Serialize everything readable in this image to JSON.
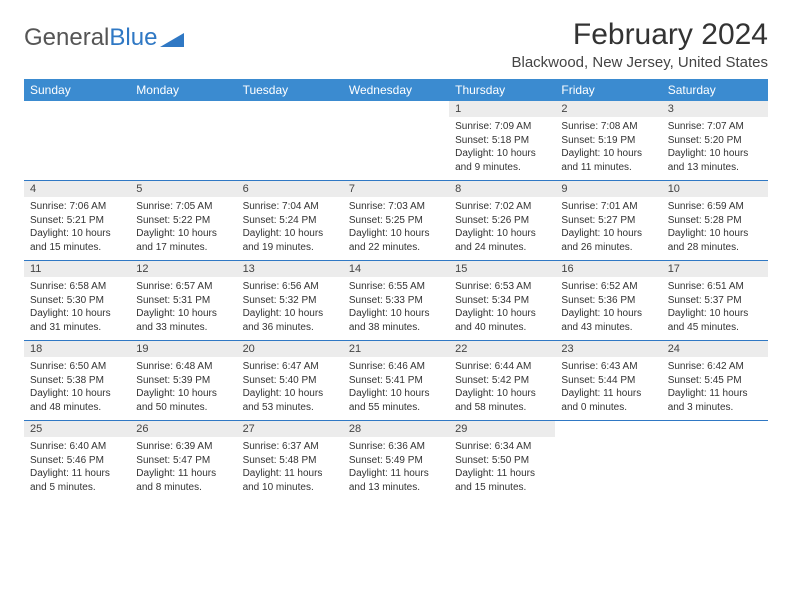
{
  "logo": {
    "text1": "General",
    "text2": "Blue"
  },
  "title": "February 2024",
  "location": "Blackwood, New Jersey, United States",
  "colors": {
    "header_bg": "#3b8bd0",
    "header_text": "#ffffff",
    "stripe": "#ececec",
    "rule": "#2f78c4"
  },
  "day_headers": [
    "Sunday",
    "Monday",
    "Tuesday",
    "Wednesday",
    "Thursday",
    "Friday",
    "Saturday"
  ],
  "weeks": [
    [
      null,
      null,
      null,
      null,
      {
        "n": "1",
        "sr": "Sunrise: 7:09 AM",
        "ss": "Sunset: 5:18 PM",
        "dl": "Daylight: 10 hours and 9 minutes."
      },
      {
        "n": "2",
        "sr": "Sunrise: 7:08 AM",
        "ss": "Sunset: 5:19 PM",
        "dl": "Daylight: 10 hours and 11 minutes."
      },
      {
        "n": "3",
        "sr": "Sunrise: 7:07 AM",
        "ss": "Sunset: 5:20 PM",
        "dl": "Daylight: 10 hours and 13 minutes."
      }
    ],
    [
      {
        "n": "4",
        "sr": "Sunrise: 7:06 AM",
        "ss": "Sunset: 5:21 PM",
        "dl": "Daylight: 10 hours and 15 minutes."
      },
      {
        "n": "5",
        "sr": "Sunrise: 7:05 AM",
        "ss": "Sunset: 5:22 PM",
        "dl": "Daylight: 10 hours and 17 minutes."
      },
      {
        "n": "6",
        "sr": "Sunrise: 7:04 AM",
        "ss": "Sunset: 5:24 PM",
        "dl": "Daylight: 10 hours and 19 minutes."
      },
      {
        "n": "7",
        "sr": "Sunrise: 7:03 AM",
        "ss": "Sunset: 5:25 PM",
        "dl": "Daylight: 10 hours and 22 minutes."
      },
      {
        "n": "8",
        "sr": "Sunrise: 7:02 AM",
        "ss": "Sunset: 5:26 PM",
        "dl": "Daylight: 10 hours and 24 minutes."
      },
      {
        "n": "9",
        "sr": "Sunrise: 7:01 AM",
        "ss": "Sunset: 5:27 PM",
        "dl": "Daylight: 10 hours and 26 minutes."
      },
      {
        "n": "10",
        "sr": "Sunrise: 6:59 AM",
        "ss": "Sunset: 5:28 PM",
        "dl": "Daylight: 10 hours and 28 minutes."
      }
    ],
    [
      {
        "n": "11",
        "sr": "Sunrise: 6:58 AM",
        "ss": "Sunset: 5:30 PM",
        "dl": "Daylight: 10 hours and 31 minutes."
      },
      {
        "n": "12",
        "sr": "Sunrise: 6:57 AM",
        "ss": "Sunset: 5:31 PM",
        "dl": "Daylight: 10 hours and 33 minutes."
      },
      {
        "n": "13",
        "sr": "Sunrise: 6:56 AM",
        "ss": "Sunset: 5:32 PM",
        "dl": "Daylight: 10 hours and 36 minutes."
      },
      {
        "n": "14",
        "sr": "Sunrise: 6:55 AM",
        "ss": "Sunset: 5:33 PM",
        "dl": "Daylight: 10 hours and 38 minutes."
      },
      {
        "n": "15",
        "sr": "Sunrise: 6:53 AM",
        "ss": "Sunset: 5:34 PM",
        "dl": "Daylight: 10 hours and 40 minutes."
      },
      {
        "n": "16",
        "sr": "Sunrise: 6:52 AM",
        "ss": "Sunset: 5:36 PM",
        "dl": "Daylight: 10 hours and 43 minutes."
      },
      {
        "n": "17",
        "sr": "Sunrise: 6:51 AM",
        "ss": "Sunset: 5:37 PM",
        "dl": "Daylight: 10 hours and 45 minutes."
      }
    ],
    [
      {
        "n": "18",
        "sr": "Sunrise: 6:50 AM",
        "ss": "Sunset: 5:38 PM",
        "dl": "Daylight: 10 hours and 48 minutes."
      },
      {
        "n": "19",
        "sr": "Sunrise: 6:48 AM",
        "ss": "Sunset: 5:39 PM",
        "dl": "Daylight: 10 hours and 50 minutes."
      },
      {
        "n": "20",
        "sr": "Sunrise: 6:47 AM",
        "ss": "Sunset: 5:40 PM",
        "dl": "Daylight: 10 hours and 53 minutes."
      },
      {
        "n": "21",
        "sr": "Sunrise: 6:46 AM",
        "ss": "Sunset: 5:41 PM",
        "dl": "Daylight: 10 hours and 55 minutes."
      },
      {
        "n": "22",
        "sr": "Sunrise: 6:44 AM",
        "ss": "Sunset: 5:42 PM",
        "dl": "Daylight: 10 hours and 58 minutes."
      },
      {
        "n": "23",
        "sr": "Sunrise: 6:43 AM",
        "ss": "Sunset: 5:44 PM",
        "dl": "Daylight: 11 hours and 0 minutes."
      },
      {
        "n": "24",
        "sr": "Sunrise: 6:42 AM",
        "ss": "Sunset: 5:45 PM",
        "dl": "Daylight: 11 hours and 3 minutes."
      }
    ],
    [
      {
        "n": "25",
        "sr": "Sunrise: 6:40 AM",
        "ss": "Sunset: 5:46 PM",
        "dl": "Daylight: 11 hours and 5 minutes."
      },
      {
        "n": "26",
        "sr": "Sunrise: 6:39 AM",
        "ss": "Sunset: 5:47 PM",
        "dl": "Daylight: 11 hours and 8 minutes."
      },
      {
        "n": "27",
        "sr": "Sunrise: 6:37 AM",
        "ss": "Sunset: 5:48 PM",
        "dl": "Daylight: 11 hours and 10 minutes."
      },
      {
        "n": "28",
        "sr": "Sunrise: 6:36 AM",
        "ss": "Sunset: 5:49 PM",
        "dl": "Daylight: 11 hours and 13 minutes."
      },
      {
        "n": "29",
        "sr": "Sunrise: 6:34 AM",
        "ss": "Sunset: 5:50 PM",
        "dl": "Daylight: 11 hours and 15 minutes."
      },
      null,
      null
    ]
  ]
}
